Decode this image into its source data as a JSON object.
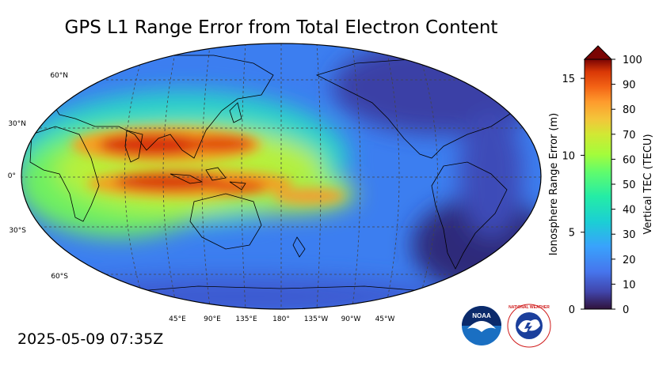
{
  "title": "GPS L1 Range Error from Total Electron Content",
  "timestamp": "2025-05-09 07:35Z",
  "map": {
    "lat_labels": [
      "60°N",
      "30°N",
      "0°",
      "30°S",
      "60°S"
    ],
    "lon_labels": [
      "45°E",
      "90°E",
      "135°E",
      "180°",
      "135°W",
      "90°W",
      "45°W"
    ],
    "projection": "Robinson, centered 180°"
  },
  "colorbar": {
    "left_label": "Ionosphere Range Error (m)",
    "right_label": "Vertical TEC (TECU)",
    "left_ticks": [
      "0",
      "5",
      "10",
      "15"
    ],
    "right_ticks": [
      "0",
      "10",
      "20",
      "30",
      "40",
      "50",
      "60",
      "70",
      "80",
      "90",
      "100"
    ],
    "colormap": "turbo",
    "extend": "max"
  },
  "logos": {
    "noaa": "NOAA",
    "nws": "NATIONAL WEATHER SERVICE"
  }
}
